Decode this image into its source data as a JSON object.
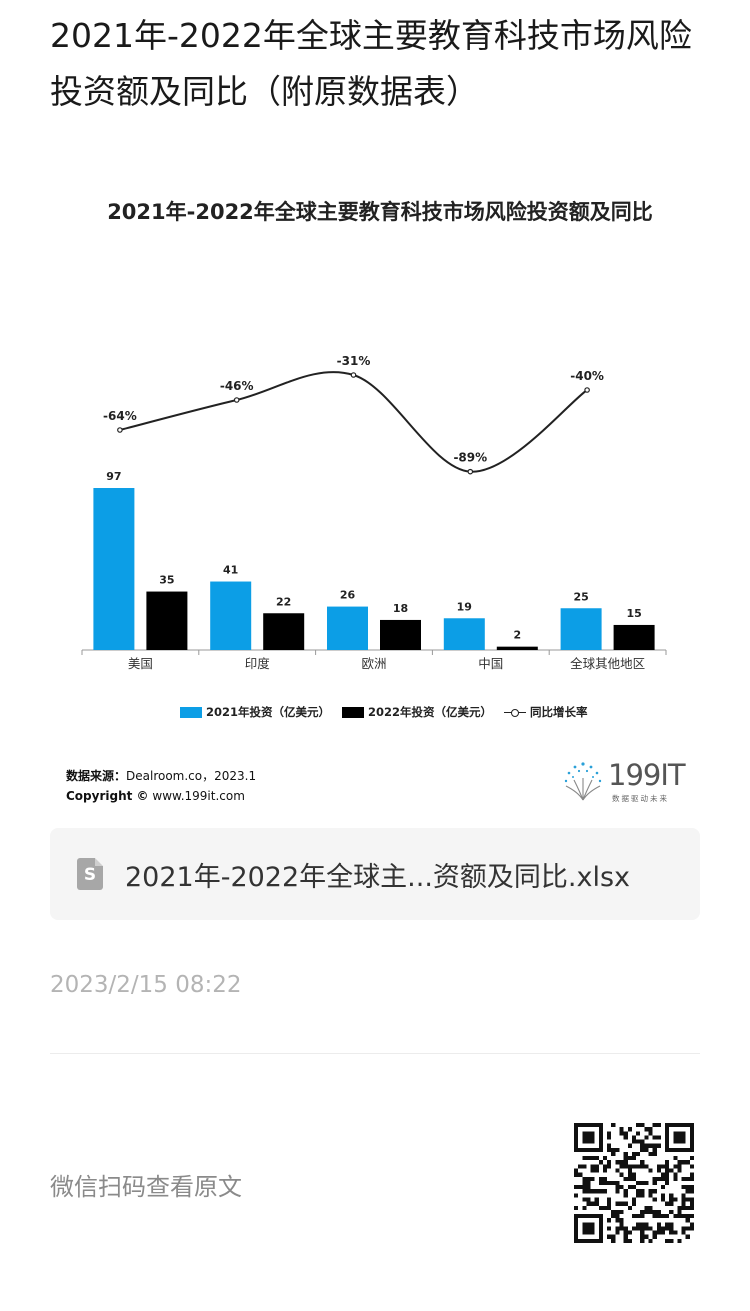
{
  "article": {
    "title": "2021年-2022年全球主要教育科技市场风险投资额及同比（附原数据表）"
  },
  "chart_data": {
    "type": "bar",
    "title": "2021年-2022年全球主要教育科技市场风险投资额及同比",
    "categories": [
      "美国",
      "印度",
      "欧洲",
      "中国",
      "全球其他地区"
    ],
    "series": [
      {
        "name": "2021年投资（亿美元）",
        "kind": "bar",
        "color": "#0c9ee6",
        "values": [
          97,
          41,
          26,
          19,
          25
        ]
      },
      {
        "name": "2022年投资（亿美元）",
        "kind": "bar",
        "color": "#000000",
        "values": [
          35,
          22,
          18,
          2,
          15
        ]
      },
      {
        "name": "同比增长率",
        "kind": "line",
        "color": "#222222",
        "values": [
          -64,
          -46,
          -31,
          -89,
          -40
        ],
        "labels": [
          "-64%",
          "-46%",
          "-31%",
          "-89%",
          "-40%"
        ]
      }
    ],
    "ylim": [
      0,
      100
    ],
    "y2lim": [
      -100,
      -25
    ],
    "legend_position": "bottom",
    "grid": false
  },
  "source": {
    "label": "数据来源：",
    "text": "Dealroom.co，2023.1",
    "copyright_label": "Copyright ©",
    "copyright_text": "www.199it.com"
  },
  "brand": {
    "logo_text": "199IT",
    "tagline": "数据驱动未来"
  },
  "attachment": {
    "icon": "spreadsheet-file-icon",
    "icon_letter": "S",
    "file_name": "2021年-2022年全球主...资额及同比.xlsx"
  },
  "timestamp": "2023/2/15 08:22",
  "footer": {
    "wechat_hint": "微信扫码查看原文",
    "qr_icon": "qr-code-icon"
  }
}
